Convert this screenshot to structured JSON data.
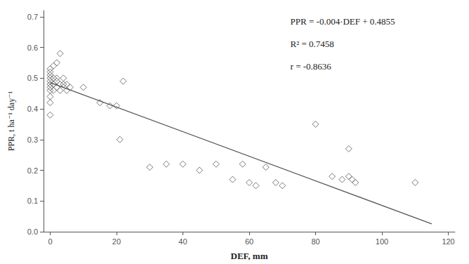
{
  "chart_data": {
    "type": "scatter",
    "xlabel": "DEF, mm",
    "ylabel": "PPR, t ha⁻¹ day⁻¹",
    "annotations": [
      "PPR = -0.004·DEF + 0.4855",
      "R² = 0.7458",
      "r = -0.8636"
    ],
    "series": [
      {
        "type": "scatter",
        "marker": "diamond",
        "color": "#444444",
        "x": [
          0,
          0,
          0,
          0,
          0,
          0,
          0,
          0,
          0,
          0,
          0,
          1,
          1,
          1,
          1,
          2,
          2,
          2,
          2,
          3,
          3,
          3,
          4,
          4,
          5,
          5,
          6,
          10,
          15,
          18,
          20,
          21,
          22,
          30,
          35,
          40,
          45,
          50,
          55,
          58,
          60,
          62,
          65,
          68,
          70,
          80,
          85,
          88,
          90,
          90,
          91,
          92,
          110
        ],
        "values": [
          0.38,
          0.42,
          0.44,
          0.46,
          0.47,
          0.48,
          0.49,
          0.5,
          0.51,
          0.52,
          0.53,
          0.46,
          0.48,
          0.5,
          0.54,
          0.47,
          0.49,
          0.5,
          0.55,
          0.46,
          0.48,
          0.58,
          0.48,
          0.5,
          0.46,
          0.48,
          0.47,
          0.47,
          0.42,
          0.41,
          0.41,
          0.3,
          0.49,
          0.21,
          0.22,
          0.22,
          0.2,
          0.22,
          0.17,
          0.22,
          0.16,
          0.15,
          0.21,
          0.16,
          0.15,
          0.35,
          0.18,
          0.17,
          0.27,
          0.18,
          0.17,
          0.16,
          0.16
        ]
      },
      {
        "type": "line",
        "color": "#555555",
        "x": [
          0,
          115
        ],
        "values": [
          0.4855,
          0.0255
        ]
      }
    ],
    "xlim": [
      -2,
      122
    ],
    "ylim": [
      0.0,
      0.72
    ],
    "xticks": [
      0,
      20,
      40,
      60,
      80,
      100,
      120
    ],
    "yticks": [
      {
        "value": 0.0,
        "label": "0.0"
      },
      0.1,
      0.2,
      0.3,
      0.4,
      0.5,
      0.6,
      0.7
    ],
    "grid": false
  }
}
